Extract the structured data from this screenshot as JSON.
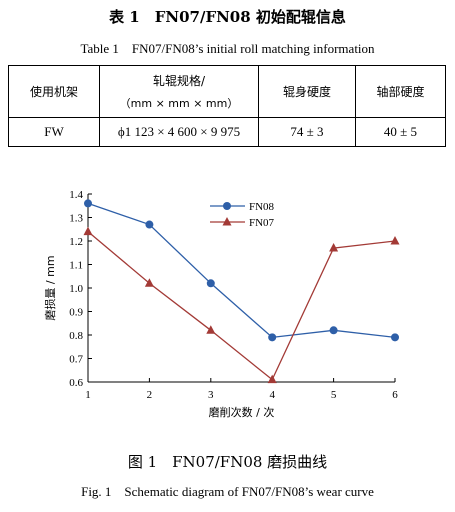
{
  "table_caption": {
    "zh": "表 1　FN07/FN08 初始配辊信息",
    "en": "Table 1　FN07/FN08’s initial roll matching information"
  },
  "table": {
    "headers": [
      "使用机架",
      "轧辊规格/",
      "（mm × mm × mm）",
      "辊身硬度",
      "轴部硬度"
    ],
    "row": [
      "FW",
      "ϕ1 123 × 4 600 × 9 975",
      "74 ± 3",
      "40 ± 5"
    ]
  },
  "chart_data": {
    "type": "line",
    "x": [
      1,
      2,
      3,
      4,
      5,
      6
    ],
    "series": [
      {
        "name": "FN08",
        "color": "#2E5FA8",
        "marker": "circle",
        "values": [
          1.36,
          1.27,
          1.02,
          0.79,
          0.82,
          0.79
        ]
      },
      {
        "name": "FN07",
        "color": "#A33A36",
        "marker": "triangle",
        "values": [
          1.24,
          1.02,
          0.82,
          0.61,
          1.17,
          1.2
        ]
      }
    ],
    "xlabel": "磨削次数 / 次",
    "ylabel": "磨损量 / mm",
    "xlim": [
      1,
      6
    ],
    "ylim": [
      0.6,
      1.4
    ],
    "yticks": [
      "0.6",
      "0.7",
      "0.8",
      "0.9",
      "1.0",
      "1.1",
      "1.2",
      "1.3",
      "1.4"
    ],
    "xticks": [
      "1",
      "2",
      "3",
      "4",
      "5",
      "6"
    ],
    "grid": false,
    "legend": "top-center"
  },
  "figure_caption": {
    "zh": "图 1　FN07/FN08 磨损曲线",
    "en": "Fig. 1　Schematic diagram of FN07/FN08’s wear curve"
  }
}
